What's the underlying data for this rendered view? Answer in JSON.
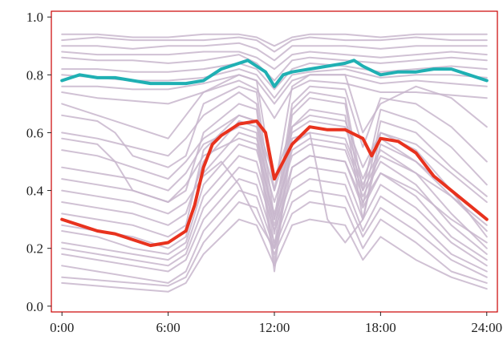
{
  "chart_data": {
    "type": "line",
    "title": "",
    "xlabel": "",
    "ylabel": "",
    "xlim": [
      -0.6,
      24.6
    ],
    "ylim": [
      -0.02,
      1.02
    ],
    "x_ticks": [
      0,
      6,
      12,
      18,
      24
    ],
    "x_tick_labels": [
      "0:00",
      "6:00",
      "12:00",
      "18:00",
      "24:00"
    ],
    "y_ticks": [
      0.0,
      0.2,
      0.4,
      0.6,
      0.8,
      1.0
    ],
    "y_tick_labels": [
      "0.0",
      "0.2",
      "0.4",
      "0.6",
      "0.8",
      "1.0"
    ],
    "grid": false,
    "colors": {
      "background_series": "#c8b6cc",
      "series_teal": "#1fb0b3",
      "series_red": "#e8321e",
      "axis": "#cc0000"
    },
    "background_series": [
      {
        "x": [
          0,
          2,
          4,
          6,
          8,
          10,
          11,
          12,
          13,
          14,
          16,
          18,
          20,
          22,
          24
        ],
        "y": [
          0.94,
          0.94,
          0.93,
          0.93,
          0.94,
          0.94,
          0.93,
          0.9,
          0.93,
          0.94,
          0.94,
          0.93,
          0.94,
          0.94,
          0.94
        ]
      },
      {
        "x": [
          0,
          2,
          4,
          6,
          8,
          10,
          11,
          12,
          13,
          14,
          16,
          18,
          20,
          22,
          24
        ],
        "y": [
          0.92,
          0.93,
          0.92,
          0.92,
          0.92,
          0.93,
          0.92,
          0.88,
          0.92,
          0.93,
          0.92,
          0.92,
          0.93,
          0.92,
          0.92
        ]
      },
      {
        "x": [
          0,
          2,
          4,
          6,
          8,
          10,
          11,
          12,
          13,
          14,
          16,
          18,
          20,
          22,
          24
        ],
        "y": [
          0.9,
          0.9,
          0.89,
          0.9,
          0.9,
          0.91,
          0.89,
          0.85,
          0.9,
          0.9,
          0.9,
          0.89,
          0.9,
          0.9,
          0.9
        ]
      },
      {
        "x": [
          0,
          2,
          4,
          6,
          8,
          10,
          11,
          12,
          13,
          14,
          16,
          18,
          20,
          22,
          24
        ],
        "y": [
          0.88,
          0.87,
          0.87,
          0.87,
          0.88,
          0.88,
          0.86,
          0.82,
          0.87,
          0.88,
          0.87,
          0.86,
          0.87,
          0.88,
          0.87
        ]
      },
      {
        "x": [
          0,
          2,
          4,
          6,
          8,
          10,
          11,
          12,
          13,
          14,
          16,
          18,
          20,
          22,
          24
        ],
        "y": [
          0.86,
          0.85,
          0.85,
          0.84,
          0.85,
          0.87,
          0.84,
          0.78,
          0.85,
          0.86,
          0.85,
          0.84,
          0.85,
          0.86,
          0.85
        ]
      },
      {
        "x": [
          0,
          2,
          4,
          6,
          8,
          10,
          11,
          12,
          13,
          14,
          16,
          18,
          20,
          22,
          24
        ],
        "y": [
          0.82,
          0.82,
          0.81,
          0.81,
          0.82,
          0.84,
          0.82,
          0.75,
          0.82,
          0.84,
          0.83,
          0.81,
          0.82,
          0.83,
          0.82
        ]
      },
      {
        "x": [
          0,
          2,
          4,
          6,
          8,
          10,
          11,
          12,
          13,
          14,
          16,
          18,
          20,
          22,
          24
        ],
        "y": [
          0.8,
          0.79,
          0.78,
          0.78,
          0.79,
          0.82,
          0.8,
          0.72,
          0.8,
          0.81,
          0.82,
          0.79,
          0.8,
          0.8,
          0.79
        ]
      },
      {
        "x": [
          0,
          2,
          4,
          6,
          8,
          10,
          11,
          12,
          13,
          14,
          16,
          18,
          20,
          22,
          24
        ],
        "y": [
          0.76,
          0.76,
          0.75,
          0.75,
          0.77,
          0.8,
          0.78,
          0.7,
          0.78,
          0.8,
          0.8,
          0.77,
          0.78,
          0.77,
          0.76
        ]
      },
      {
        "x": [
          0,
          2,
          4,
          6,
          8,
          10,
          11,
          12,
          13,
          14,
          16,
          18,
          20,
          22,
          24
        ],
        "y": [
          0.74,
          0.72,
          0.71,
          0.7,
          0.74,
          0.78,
          0.75,
          0.65,
          0.75,
          0.78,
          0.77,
          0.74,
          0.74,
          0.73,
          0.72
        ]
      },
      {
        "x": [
          0,
          2,
          4,
          6,
          7,
          8,
          10,
          11,
          12,
          13,
          14,
          16,
          17,
          18,
          20,
          22,
          24
        ],
        "y": [
          0.7,
          0.66,
          0.62,
          0.58,
          0.66,
          0.74,
          0.8,
          0.78,
          0.4,
          0.76,
          0.8,
          0.8,
          0.6,
          0.7,
          0.76,
          0.72,
          0.62
        ]
      },
      {
        "x": [
          0,
          1,
          2,
          3,
          4,
          6,
          7,
          8,
          10,
          11,
          12,
          13,
          14,
          16,
          17,
          18,
          20,
          22,
          24
        ],
        "y": [
          0.66,
          0.65,
          0.64,
          0.6,
          0.52,
          0.48,
          0.52,
          0.7,
          0.76,
          0.74,
          0.3,
          0.7,
          0.76,
          0.75,
          0.55,
          0.72,
          0.7,
          0.62,
          0.5
        ]
      },
      {
        "x": [
          0,
          2,
          4,
          6,
          7,
          8,
          10,
          11,
          12,
          13,
          14,
          16,
          17,
          18,
          20,
          22,
          24
        ],
        "y": [
          0.6,
          0.58,
          0.55,
          0.52,
          0.58,
          0.66,
          0.74,
          0.7,
          0.25,
          0.68,
          0.74,
          0.72,
          0.4,
          0.68,
          0.64,
          0.55,
          0.42
        ]
      },
      {
        "x": [
          0,
          2,
          3,
          4,
          6,
          7,
          8,
          10,
          11,
          12,
          13,
          14,
          16,
          17,
          18,
          20,
          22,
          24
        ],
        "y": [
          0.58,
          0.56,
          0.5,
          0.4,
          0.36,
          0.4,
          0.6,
          0.7,
          0.68,
          0.2,
          0.66,
          0.72,
          0.7,
          0.35,
          0.64,
          0.6,
          0.48,
          0.38
        ]
      },
      {
        "x": [
          0,
          2,
          4,
          6,
          7,
          8,
          10,
          11,
          12,
          13,
          14,
          16,
          17,
          18,
          20,
          22,
          24
        ],
        "y": [
          0.54,
          0.52,
          0.48,
          0.44,
          0.5,
          0.58,
          0.66,
          0.64,
          0.15,
          0.62,
          0.68,
          0.66,
          0.3,
          0.6,
          0.56,
          0.46,
          0.36
        ]
      },
      {
        "x": [
          0,
          2,
          4,
          6,
          7,
          8,
          10,
          11,
          12,
          13,
          14,
          15,
          16,
          17,
          18,
          20,
          22,
          24
        ],
        "y": [
          0.48,
          0.46,
          0.44,
          0.4,
          0.46,
          0.56,
          0.62,
          0.6,
          0.12,
          0.58,
          0.6,
          0.3,
          0.22,
          0.3,
          0.56,
          0.5,
          0.4,
          0.3
        ]
      },
      {
        "x": [
          0,
          2,
          4,
          6,
          7,
          8,
          10,
          11,
          12,
          13,
          14,
          16,
          17,
          18,
          20,
          22,
          24
        ],
        "y": [
          0.44,
          0.42,
          0.4,
          0.36,
          0.42,
          0.52,
          0.58,
          0.56,
          0.3,
          0.54,
          0.58,
          0.56,
          0.4,
          0.52,
          0.46,
          0.38,
          0.28
        ]
      },
      {
        "x": [
          0,
          2,
          4,
          6,
          7,
          8,
          9,
          10,
          11,
          12,
          13,
          14,
          16,
          17,
          18,
          20,
          22,
          24
        ],
        "y": [
          0.4,
          0.38,
          0.36,
          0.32,
          0.36,
          0.45,
          0.5,
          0.42,
          0.3,
          0.2,
          0.48,
          0.52,
          0.5,
          0.36,
          0.46,
          0.4,
          0.3,
          0.22
        ]
      },
      {
        "x": [
          0,
          2,
          4,
          6,
          7,
          8,
          10,
          11,
          12,
          13,
          14,
          16,
          17,
          18,
          20,
          22,
          24
        ],
        "y": [
          0.36,
          0.34,
          0.32,
          0.28,
          0.32,
          0.5,
          0.64,
          0.62,
          0.4,
          0.6,
          0.64,
          0.62,
          0.44,
          0.58,
          0.5,
          0.38,
          0.26
        ]
      },
      {
        "x": [
          0,
          2,
          4,
          6,
          7,
          8,
          10,
          11,
          12,
          13,
          14,
          16,
          17,
          18,
          20,
          22,
          24
        ],
        "y": [
          0.32,
          0.3,
          0.28,
          0.24,
          0.28,
          0.54,
          0.66,
          0.64,
          0.44,
          0.62,
          0.66,
          0.64,
          0.48,
          0.6,
          0.54,
          0.4,
          0.24
        ]
      },
      {
        "x": [
          0,
          2,
          4,
          6,
          7,
          8,
          10,
          11,
          12,
          13,
          14,
          16,
          17,
          18,
          20,
          22,
          24
        ],
        "y": [
          0.28,
          0.26,
          0.24,
          0.2,
          0.24,
          0.46,
          0.6,
          0.58,
          0.36,
          0.56,
          0.6,
          0.58,
          0.42,
          0.54,
          0.46,
          0.32,
          0.2
        ]
      },
      {
        "x": [
          0,
          2,
          4,
          6,
          7,
          8,
          10,
          11,
          12,
          13,
          14,
          16,
          17,
          18,
          20,
          22,
          24
        ],
        "y": [
          0.26,
          0.24,
          0.2,
          0.18,
          0.22,
          0.42,
          0.56,
          0.54,
          0.32,
          0.52,
          0.56,
          0.54,
          0.38,
          0.5,
          0.42,
          0.28,
          0.18
        ]
      },
      {
        "x": [
          0,
          2,
          4,
          6,
          7,
          8,
          10,
          11,
          12,
          13,
          14,
          16,
          17,
          18,
          20,
          22,
          24
        ],
        "y": [
          0.22,
          0.2,
          0.18,
          0.16,
          0.2,
          0.38,
          0.52,
          0.5,
          0.28,
          0.48,
          0.52,
          0.5,
          0.34,
          0.46,
          0.38,
          0.24,
          0.16
        ]
      },
      {
        "x": [
          0,
          2,
          4,
          6,
          7,
          8,
          10,
          11,
          12,
          13,
          14,
          16,
          17,
          18,
          20,
          22,
          24
        ],
        "y": [
          0.2,
          0.18,
          0.16,
          0.14,
          0.18,
          0.34,
          0.48,
          0.46,
          0.26,
          0.44,
          0.48,
          0.46,
          0.3,
          0.42,
          0.34,
          0.22,
          0.14
        ]
      },
      {
        "x": [
          0,
          2,
          4,
          6,
          7,
          8,
          10,
          11,
          12,
          13,
          14,
          16,
          17,
          18,
          20,
          22,
          24
        ],
        "y": [
          0.18,
          0.16,
          0.14,
          0.12,
          0.16,
          0.3,
          0.44,
          0.42,
          0.22,
          0.4,
          0.44,
          0.42,
          0.26,
          0.38,
          0.3,
          0.18,
          0.12
        ]
      },
      {
        "x": [
          0,
          2,
          4,
          6,
          7,
          8,
          10,
          11,
          12,
          13,
          14,
          16,
          17,
          18,
          20,
          22,
          24
        ],
        "y": [
          0.14,
          0.12,
          0.1,
          0.08,
          0.12,
          0.26,
          0.4,
          0.38,
          0.2,
          0.36,
          0.4,
          0.38,
          0.24,
          0.34,
          0.26,
          0.16,
          0.1
        ]
      },
      {
        "x": [
          0,
          2,
          4,
          6,
          7,
          8,
          10,
          11,
          12,
          13,
          14,
          16,
          17,
          18,
          20,
          22,
          24
        ],
        "y": [
          0.1,
          0.09,
          0.08,
          0.07,
          0.1,
          0.22,
          0.36,
          0.34,
          0.18,
          0.32,
          0.36,
          0.34,
          0.2,
          0.3,
          0.22,
          0.12,
          0.08
        ]
      },
      {
        "x": [
          0,
          2,
          4,
          6,
          7,
          8,
          10,
          11,
          12,
          13,
          14,
          16,
          17,
          18,
          20,
          22,
          24
        ],
        "y": [
          0.08,
          0.07,
          0.06,
          0.05,
          0.08,
          0.18,
          0.3,
          0.28,
          0.14,
          0.28,
          0.3,
          0.28,
          0.16,
          0.24,
          0.16,
          0.1,
          0.06
        ]
      }
    ],
    "series": [
      {
        "color": "#1fb0b3",
        "x": [
          0,
          0.5,
          1,
          2,
          3,
          4,
          5,
          6,
          7,
          8,
          9,
          10,
          10.5,
          11,
          11.5,
          12,
          12.5,
          13,
          14,
          15,
          16,
          16.5,
          17,
          18,
          19,
          20,
          21,
          22,
          23,
          24
        ],
        "y": [
          0.78,
          0.79,
          0.8,
          0.79,
          0.79,
          0.78,
          0.77,
          0.77,
          0.77,
          0.78,
          0.82,
          0.84,
          0.85,
          0.83,
          0.81,
          0.76,
          0.8,
          0.81,
          0.82,
          0.83,
          0.84,
          0.85,
          0.83,
          0.8,
          0.81,
          0.81,
          0.82,
          0.82,
          0.8,
          0.78
        ]
      },
      {
        "color": "#e8321e",
        "x": [
          0,
          1,
          2,
          3,
          4,
          5,
          6,
          7,
          7.5,
          8,
          8.5,
          9,
          10,
          11,
          11.5,
          12,
          12.5,
          13,
          14,
          15,
          16,
          17,
          17.5,
          18,
          19,
          20,
          21,
          22,
          23,
          24
        ],
        "y": [
          0.3,
          0.28,
          0.26,
          0.25,
          0.23,
          0.21,
          0.22,
          0.26,
          0.35,
          0.48,
          0.56,
          0.59,
          0.63,
          0.64,
          0.6,
          0.44,
          0.5,
          0.56,
          0.62,
          0.61,
          0.61,
          0.58,
          0.52,
          0.58,
          0.57,
          0.53,
          0.45,
          0.4,
          0.35,
          0.3
        ]
      }
    ]
  }
}
